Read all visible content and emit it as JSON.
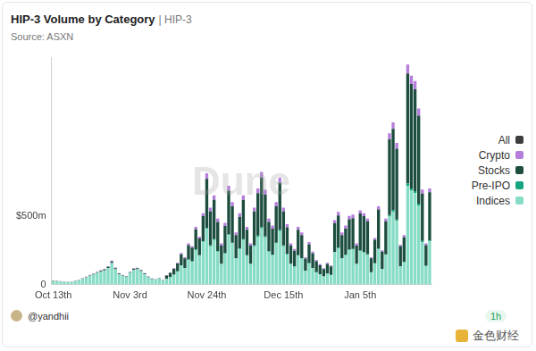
{
  "chart_data": {
    "type": "bar",
    "title": "HIP-3 Volume by Category",
    "tag": "| HIP-3",
    "subtitle": "Source: ASXN",
    "author": "@yandhii",
    "age": "1h",
    "watermark": "Dune",
    "logo_text": "金色财经",
    "stacked": true,
    "grid": false,
    "legend": "right",
    "ylim": [
      0,
      1650
    ],
    "yticks": [
      0,
      {
        "value": 500,
        "label": "$500m"
      }
    ],
    "categories": [
      "Oct 13th",
      null,
      null,
      null,
      null,
      null,
      null,
      null,
      null,
      null,
      null,
      null,
      null,
      null,
      null,
      null,
      null,
      null,
      null,
      null,
      null,
      "Nov 3rd",
      null,
      null,
      null,
      null,
      null,
      null,
      null,
      null,
      null,
      null,
      null,
      null,
      null,
      null,
      null,
      null,
      null,
      null,
      null,
      null,
      "Nov 24th",
      null,
      null,
      null,
      null,
      null,
      null,
      null,
      null,
      null,
      null,
      null,
      null,
      null,
      null,
      null,
      null,
      null,
      null,
      null,
      null,
      "Dec 15th",
      null,
      null,
      null,
      null,
      null,
      null,
      null,
      null,
      null,
      null,
      null,
      null,
      null,
      null,
      null,
      null,
      null,
      null,
      null,
      null,
      "Jan 5th",
      null,
      null,
      null,
      null,
      null,
      null,
      null,
      null,
      null,
      null,
      null,
      null,
      null,
      null,
      null,
      null,
      null,
      null,
      null
    ],
    "series": [
      {
        "name": "All",
        "color": "#3d3d3d",
        "values": [
          0,
          0,
          0,
          0,
          0,
          0,
          0,
          0,
          0,
          0,
          0,
          0,
          0,
          0,
          0,
          0,
          0,
          0,
          0,
          0,
          0,
          0,
          0,
          0,
          0,
          0,
          0,
          0,
          0,
          0,
          0,
          0,
          0,
          0,
          0,
          0,
          0,
          0,
          0,
          0,
          0,
          0,
          0,
          0,
          0,
          0,
          0,
          0,
          0,
          0,
          0,
          0,
          0,
          0,
          0,
          0,
          0,
          0,
          0,
          0,
          0,
          0,
          0,
          0,
          0,
          0,
          0,
          0,
          0,
          0,
          0,
          0,
          0,
          0,
          0,
          0,
          0,
          0,
          0,
          0,
          0,
          0,
          0,
          0,
          0,
          0,
          0,
          0,
          0,
          0,
          0,
          0,
          0,
          0,
          0,
          0,
          0,
          0,
          0,
          0,
          0,
          0,
          0,
          0
        ]
      },
      {
        "name": "Crypto",
        "color": "#b57edc",
        "values": [
          1,
          1,
          1,
          1,
          1,
          1,
          1,
          2,
          2,
          3,
          3,
          3,
          4,
          4,
          4,
          5,
          7,
          5,
          3,
          3,
          2,
          3,
          4,
          4,
          3,
          3,
          2,
          2,
          1,
          2,
          2,
          3,
          3,
          5,
          6,
          9,
          8,
          12,
          11,
          17,
          14,
          21,
          41,
          28,
          33,
          24,
          15,
          23,
          36,
          30,
          19,
          26,
          33,
          21,
          15,
          28,
          35,
          41,
          35,
          24,
          22,
          30,
          39,
          28,
          22,
          15,
          13,
          21,
          19,
          10,
          16,
          12,
          9,
          8,
          6,
          8,
          7,
          24,
          27,
          19,
          22,
          25,
          26,
          15,
          22,
          21,
          19,
          8,
          14,
          23,
          10,
          19,
          44,
          47,
          41,
          12,
          14,
          64,
          61,
          59,
          51,
          28,
          12,
          28
        ]
      },
      {
        "name": "Stocks",
        "color": "#1d4d3f",
        "values": [
          2,
          2,
          2,
          1,
          1,
          1,
          2,
          2,
          3,
          3,
          4,
          5,
          5,
          6,
          7,
          8,
          10,
          7,
          5,
          4,
          4,
          6,
          8,
          8,
          7,
          5,
          4,
          3,
          3,
          3,
          2,
          25,
          32,
          42,
          56,
          80,
          70,
          105,
          98,
          147,
          122,
          182,
          356,
          246,
          286,
          211,
          132,
          198,
          317,
          264,
          167,
          229,
          286,
          185,
          132,
          246,
          308,
          361,
          304,
          211,
          189,
          264,
          343,
          246,
          194,
          132,
          114,
          185,
          167,
          88,
          136,
          106,
          79,
          66,
          53,
          70,
          62,
          207,
          233,
          167,
          189,
          220,
          224,
          132,
          270,
          260,
          240,
          100,
          170,
          285,
          125,
          240,
          550,
          590,
          515,
          145,
          180,
          800,
          760,
          740,
          640,
          345,
          150,
          350
        ]
      },
      {
        "name": "Pre-IPO",
        "color": "#13a57e",
        "values": [
          0,
          0,
          0,
          0,
          0,
          0,
          0,
          0,
          0,
          0,
          0,
          0,
          0,
          0,
          0,
          0,
          0,
          0,
          0,
          0,
          0,
          0,
          0,
          0,
          0,
          0,
          0,
          0,
          0,
          0,
          0,
          0,
          1,
          1,
          2,
          3,
          2,
          3,
          3,
          4,
          4,
          5,
          8,
          6,
          6,
          5,
          3,
          4,
          7,
          6,
          4,
          5,
          6,
          4,
          3,
          6,
          7,
          8,
          6,
          5,
          4,
          6,
          8,
          6,
          4,
          3,
          3,
          4,
          4,
          2,
          3,
          2,
          2,
          1,
          1,
          2,
          1,
          4,
          5,
          4,
          4,
          5,
          5,
          3,
          5,
          5,
          5,
          2,
          3,
          5,
          2,
          5,
          11,
          12,
          10,
          3,
          4,
          16,
          15,
          15,
          13,
          7,
          3,
          7
        ]
      },
      {
        "name": "Indices",
        "color": "#86dcc5",
        "values": [
          27,
          25,
          23,
          22,
          18,
          20,
          25,
          34,
          43,
          52,
          65,
          74,
          86,
          95,
          104,
          122,
          158,
          113,
          77,
          65,
          56,
          86,
          108,
          112,
          99,
          77,
          54,
          40,
          36,
          45,
          31,
          42,
          54,
          72,
          96,
          138,
          120,
          180,
          168,
          252,
          210,
          312,
          405,
          280,
          325,
          240,
          150,
          225,
          360,
          300,
          190,
          260,
          325,
          210,
          150,
          280,
          350,
          410,
          345,
          240,
          215,
          300,
          390,
          280,
          220,
          150,
          130,
          210,
          190,
          100,
          155,
          120,
          90,
          75,
          60,
          80,
          70,
          235,
          265,
          190,
          215,
          250,
          255,
          150,
          243,
          234,
          216,
          90,
          153,
          257,
          113,
          216,
          495,
          531,
          464,
          131,
          162,
          720,
          684,
          666,
          576,
          311,
          135,
          315
        ]
      }
    ]
  }
}
